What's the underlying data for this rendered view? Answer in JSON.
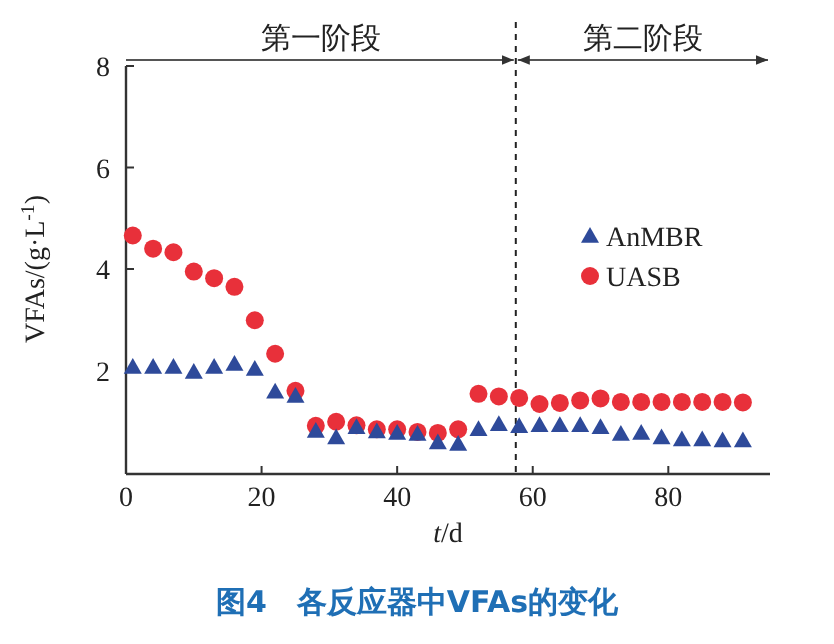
{
  "chart_data": {
    "type": "scatter",
    "title": "图4　各反应器中VFAs的变化",
    "xlabel": "t/d",
    "ylabel": "VFAs/(g·L$^{-1}$)",
    "x": [
      1,
      4,
      7,
      10,
      13,
      16,
      19,
      22,
      25,
      28,
      31,
      34,
      37,
      40,
      43,
      46,
      49,
      52,
      55,
      58,
      61,
      64,
      67,
      70,
      73,
      76,
      79,
      82,
      85,
      88,
      91
    ],
    "series": [
      {
        "name": "AnMBR",
        "color": "#2e4a9a",
        "marker": "triangle",
        "values": [
          2.07,
          2.07,
          2.07,
          1.97,
          2.07,
          2.13,
          2.03,
          1.58,
          1.5,
          0.81,
          0.68,
          0.88,
          0.8,
          0.77,
          0.75,
          0.58,
          0.55,
          0.84,
          0.94,
          0.9,
          0.92,
          0.92,
          0.92,
          0.88,
          0.75,
          0.77,
          0.68,
          0.64,
          0.64,
          0.62,
          0.62
        ]
      },
      {
        "name": "UASB",
        "color": "#e8303a",
        "marker": "circle",
        "values": [
          4.66,
          4.4,
          4.33,
          3.95,
          3.82,
          3.65,
          2.99,
          2.33,
          1.6,
          0.91,
          0.99,
          0.92,
          0.84,
          0.84,
          0.79,
          0.77,
          0.84,
          1.54,
          1.49,
          1.46,
          1.34,
          1.36,
          1.41,
          1.45,
          1.38,
          1.38,
          1.38,
          1.38,
          1.38,
          1.38,
          1.37
        ]
      }
    ],
    "xlim": [
      0,
      95
    ],
    "ylim": [
      0,
      8
    ],
    "xticks": [
      0,
      20,
      40,
      60,
      80
    ],
    "yticks": [
      2,
      4,
      6,
      8
    ],
    "ref_lines": [
      {
        "axis": "x",
        "value": 57.5,
        "line_style": "dashed",
        "color": "#222222"
      }
    ],
    "annotations": [
      "第一阶段",
      "第二阶段"
    ],
    "legend": "right",
    "grid": false
  }
}
